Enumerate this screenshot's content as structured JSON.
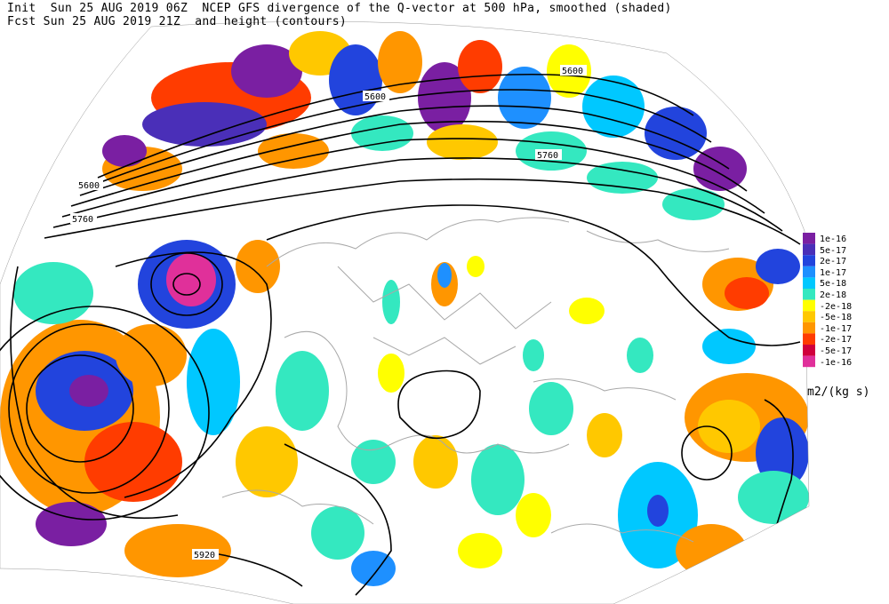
{
  "header": {
    "line1": "Init  Sun 25 AUG 2019 06Z  NCEP GFS divergence of the Q-vector at 500 hPa, smoothed (shaded)",
    "line2": "Fcst Sun 25 AUG 2019 21Z  and height (contours)"
  },
  "contour_labels": [
    "5600",
    "5600",
    "5600",
    "5760",
    "5760",
    "5920"
  ],
  "legend": {
    "entries": [
      {
        "label": "1e-16",
        "color": "#7a1fa2"
      },
      {
        "label": "5e-17",
        "color": "#4a2fb8"
      },
      {
        "label": "2e-17",
        "color": "#2244dd"
      },
      {
        "label": "1e-17",
        "color": "#1e90ff"
      },
      {
        "label": "5e-18",
        "color": "#00c8ff"
      },
      {
        "label": "2e-18",
        "color": "#34e8c0"
      },
      {
        "label": "-2e-18",
        "color": "#ffff00"
      },
      {
        "label": "-5e-18",
        "color": "#ffc800"
      },
      {
        "label": "-1e-17",
        "color": "#ff9600"
      },
      {
        "label": "-2e-17",
        "color": "#ff3c00"
      },
      {
        "label": "-5e-17",
        "color": "#d0003c"
      },
      {
        "label": "-1e-16",
        "color": "#e0309a"
      }
    ],
    "units": "m2/(kg s)"
  }
}
